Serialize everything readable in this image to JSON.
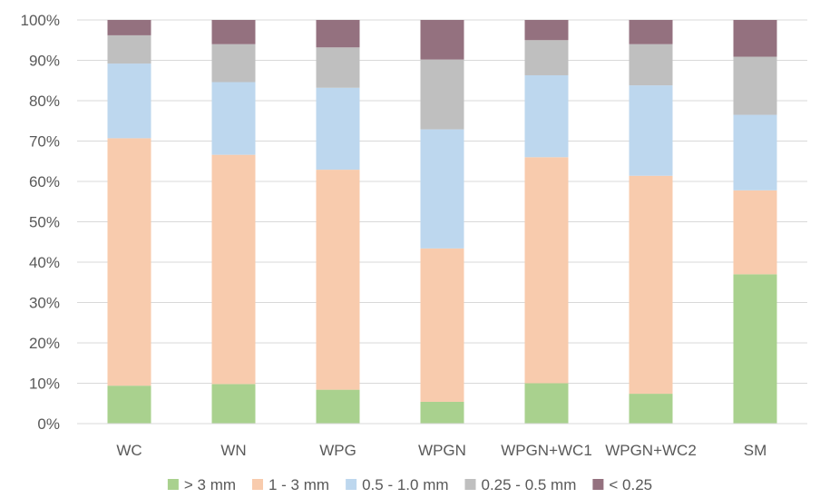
{
  "chart_data": {
    "type": "bar",
    "stacked": true,
    "percent": true,
    "categories": [
      "WC",
      "WN",
      "WPG",
      "WPGN",
      "WPGN+WC1",
      "WPGN+WC2",
      "SM"
    ],
    "series": [
      {
        "name": "> 3 mm",
        "color": "#a9d18e",
        "values": [
          9.4,
          9.8,
          8.4,
          5.4,
          10.0,
          7.4,
          37.0
        ]
      },
      {
        "name": "1 - 3 mm",
        "color": "#f8cbad",
        "values": [
          61.3,
          56.8,
          54.5,
          38.0,
          56.0,
          54.0,
          20.8
        ]
      },
      {
        "name": "0.5 - 1.0 mm",
        "color": "#bdd7ee",
        "values": [
          18.5,
          18.0,
          20.3,
          29.5,
          20.3,
          22.4,
          18.7
        ]
      },
      {
        "name": "0.25 - 0.5 mm",
        "color": "#bfbfbf",
        "values": [
          7.0,
          9.4,
          10.0,
          17.3,
          8.7,
          10.2,
          14.4
        ]
      },
      {
        "name": "< 0.25",
        "color": "#94717f",
        "values": [
          3.8,
          6.0,
          6.8,
          9.8,
          5.0,
          6.0,
          9.1
        ]
      }
    ],
    "y_ticks": [
      "0%",
      "10%",
      "20%",
      "30%",
      "40%",
      "50%",
      "60%",
      "70%",
      "80%",
      "90%",
      "100%"
    ],
    "ylim": [
      0,
      100
    ],
    "grid": true,
    "legend_position": "bottom",
    "title": "",
    "xlabel": "",
    "ylabel": ""
  }
}
